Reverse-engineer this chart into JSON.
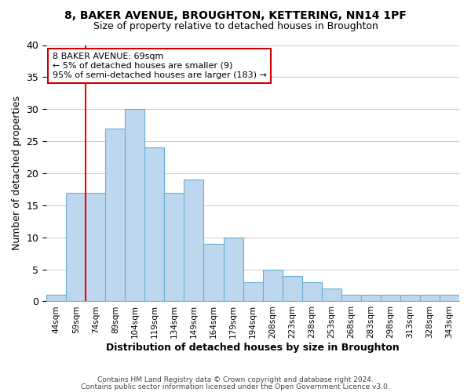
{
  "title": "8, BAKER AVENUE, BROUGHTON, KETTERING, NN14 1PF",
  "subtitle": "Size of property relative to detached houses in Broughton",
  "xlabel": "Distribution of detached houses by size in Broughton",
  "ylabel": "Number of detached properties",
  "bin_labels": [
    "44sqm",
    "59sqm",
    "74sqm",
    "89sqm",
    "104sqm",
    "119sqm",
    "134sqm",
    "149sqm",
    "164sqm",
    "179sqm",
    "194sqm",
    "208sqm",
    "223sqm",
    "238sqm",
    "253sqm",
    "268sqm",
    "283sqm",
    "298sqm",
    "313sqm",
    "328sqm",
    "343sqm"
  ],
  "bar_values": [
    1,
    17,
    17,
    27,
    30,
    24,
    17,
    19,
    9,
    10,
    3,
    5,
    4,
    3,
    2,
    1,
    1,
    1,
    1,
    1,
    1
  ],
  "bar_color": "#bdd7ee",
  "bar_edge_color": "#6baed6",
  "ylim": [
    0,
    40
  ],
  "yticks": [
    0,
    5,
    10,
    15,
    20,
    25,
    30,
    35,
    40
  ],
  "red_line_x": 1.5,
  "annotation_title": "8 BAKER AVENUE: 69sqm",
  "annotation_line1": "← 5% of detached houses are smaller (9)",
  "annotation_line2": "95% of semi-detached houses are larger (183) →",
  "annotation_box_color": "#ffffff",
  "annotation_box_edge": "#cc0000",
  "footer_line1": "Contains HM Land Registry data © Crown copyright and database right 2024.",
  "footer_line2": "Contains public sector information licensed under the Open Government Licence v3.0.",
  "background_color": "#ffffff",
  "grid_color": "#d0d0d0"
}
